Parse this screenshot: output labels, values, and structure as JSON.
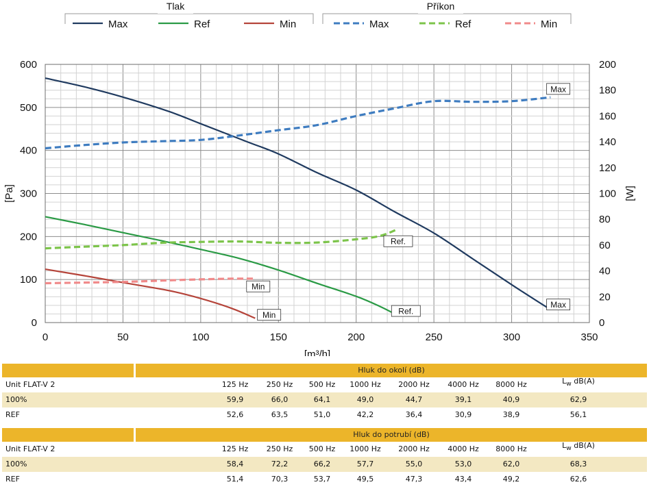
{
  "legend": {
    "group1_title": "Tlak",
    "group2_title": "Příkon",
    "group1": [
      {
        "label": "Max",
        "color": "#1f3a5f"
      },
      {
        "label": "Ref",
        "color": "#2a9a45"
      },
      {
        "label": "Min",
        "color": "#b5443a"
      }
    ],
    "group2": [
      {
        "label": "Max",
        "color": "#3e7cc0"
      },
      {
        "label": "Ref",
        "color": "#7cc44a"
      },
      {
        "label": "Min",
        "color": "#f08a8a"
      }
    ]
  },
  "chart_data": {
    "type": "line",
    "xlabel": "[m³/h]",
    "ylabel": "[Pa]",
    "y2label": "[W]",
    "xlim": [
      0,
      350
    ],
    "ylim": [
      0,
      600
    ],
    "y2lim": [
      0,
      200
    ],
    "xticks": [
      0,
      50,
      100,
      150,
      200,
      250,
      300,
      350
    ],
    "yticks": [
      0,
      100,
      200,
      300,
      400,
      500,
      600
    ],
    "y2ticks": [
      0,
      20,
      40,
      60,
      80,
      100,
      120,
      140,
      160,
      180,
      200
    ],
    "grid": true,
    "series": [
      {
        "name": "Max",
        "group": "Tlak",
        "axis": "left",
        "style": "solid",
        "color": "#1f3a5f",
        "x": [
          0,
          25,
          50,
          80,
          100,
          130,
          150,
          175,
          200,
          225,
          250,
          275,
          300,
          325
        ],
        "y": [
          568,
          548,
          524,
          490,
          462,
          420,
          392,
          348,
          308,
          257,
          208,
          148,
          88,
          30
        ]
      },
      {
        "name": "Ref",
        "group": "Tlak",
        "axis": "left",
        "style": "solid",
        "color": "#2a9a45",
        "x": [
          0,
          25,
          50,
          75,
          100,
          125,
          150,
          175,
          200,
          215,
          226
        ],
        "y": [
          246,
          228,
          209,
          190,
          170,
          149,
          122,
          91,
          61,
          38,
          18
        ]
      },
      {
        "name": "Min",
        "group": "Tlak",
        "axis": "left",
        "style": "solid",
        "color": "#b5443a",
        "x": [
          0,
          25,
          50,
          80,
          100,
          120,
          135
        ],
        "y": [
          124,
          109,
          93,
          74,
          56,
          33,
          10
        ]
      },
      {
        "name": "Max",
        "group": "Příkon",
        "axis": "right",
        "style": "dashed",
        "color": "#3e7cc0",
        "x": [
          0,
          25,
          50,
          75,
          100,
          125,
          150,
          175,
          200,
          225,
          250,
          275,
          300,
          325
        ],
        "y": [
          135,
          137.5,
          139.5,
          140.5,
          141.5,
          145,
          149,
          153,
          160,
          166,
          171.5,
          171,
          171.5,
          174.5
        ]
      },
      {
        "name": "Ref",
        "group": "Příkon",
        "axis": "right",
        "style": "dashed",
        "color": "#7cc44a",
        "x": [
          0,
          25,
          50,
          75,
          100,
          125,
          150,
          175,
          200,
          215,
          226
        ],
        "y": [
          57.5,
          58.8,
          60,
          61.8,
          62.5,
          62.8,
          61.8,
          62,
          64.5,
          67,
          72
        ]
      },
      {
        "name": "Min",
        "group": "Příkon",
        "axis": "right",
        "style": "dashed",
        "color": "#f08a8a",
        "x": [
          0,
          25,
          50,
          75,
          100,
          120,
          135
        ],
        "y": [
          30.5,
          31,
          31.5,
          32.5,
          33.5,
          34,
          34
        ]
      }
    ],
    "annotations": [
      {
        "text": "Max",
        "x": 330,
        "y": 181,
        "axis": "right"
      },
      {
        "text": "Ref.",
        "x": 227,
        "y": 63,
        "axis": "right"
      },
      {
        "text": "Min",
        "x": 137,
        "y": 28,
        "axis": "right"
      },
      {
        "text": "Max",
        "x": 330,
        "y": 14,
        "axis": "right"
      },
      {
        "text": "Ref.",
        "x": 232,
        "y": 9,
        "axis": "right"
      },
      {
        "text": "Min",
        "x": 144,
        "y": 6,
        "axis": "right"
      }
    ]
  },
  "tables": [
    {
      "title": "Hluk do okolí (dB)",
      "unit_label": "Unit FLAT-V 2",
      "columns": [
        "125 Hz",
        "250 Hz",
        "500 Hz",
        "1000 Hz",
        "2000 Hz",
        "4000 Hz",
        "8000 Hz"
      ],
      "lw_main": "L",
      "lw_sub": "w",
      "lw_unit": "dB(A)",
      "rows": [
        {
          "label": "100%",
          "values": [
            "59,9",
            "66,0",
            "64,1",
            "49,0",
            "44,7",
            "39,1",
            "40,9"
          ],
          "lw": "62,9"
        },
        {
          "label": "REF",
          "values": [
            "52,6",
            "63,5",
            "51,0",
            "42,2",
            "36,4",
            "30,9",
            "38,9"
          ],
          "lw": "56,1"
        }
      ]
    },
    {
      "title": "Hluk do potrubí (dB)",
      "unit_label": "Unit FLAT-V 2",
      "columns": [
        "125 Hz",
        "250 Hz",
        "500 Hz",
        "1000 Hz",
        "2000 Hz",
        "4000 Hz",
        "8000 Hz"
      ],
      "lw_main": "L",
      "lw_sub": "w",
      "lw_unit": "dB(A)",
      "rows": [
        {
          "label": "100%",
          "values": [
            "58,4",
            "72,2",
            "66,2",
            "57,7",
            "55,0",
            "53,0",
            "62,0"
          ],
          "lw": "68,3"
        },
        {
          "label": "REF",
          "values": [
            "51,4",
            "70,3",
            "53,7",
            "49,5",
            "47,3",
            "43,4",
            "49,2"
          ],
          "lw": "62,6"
        }
      ]
    }
  ]
}
